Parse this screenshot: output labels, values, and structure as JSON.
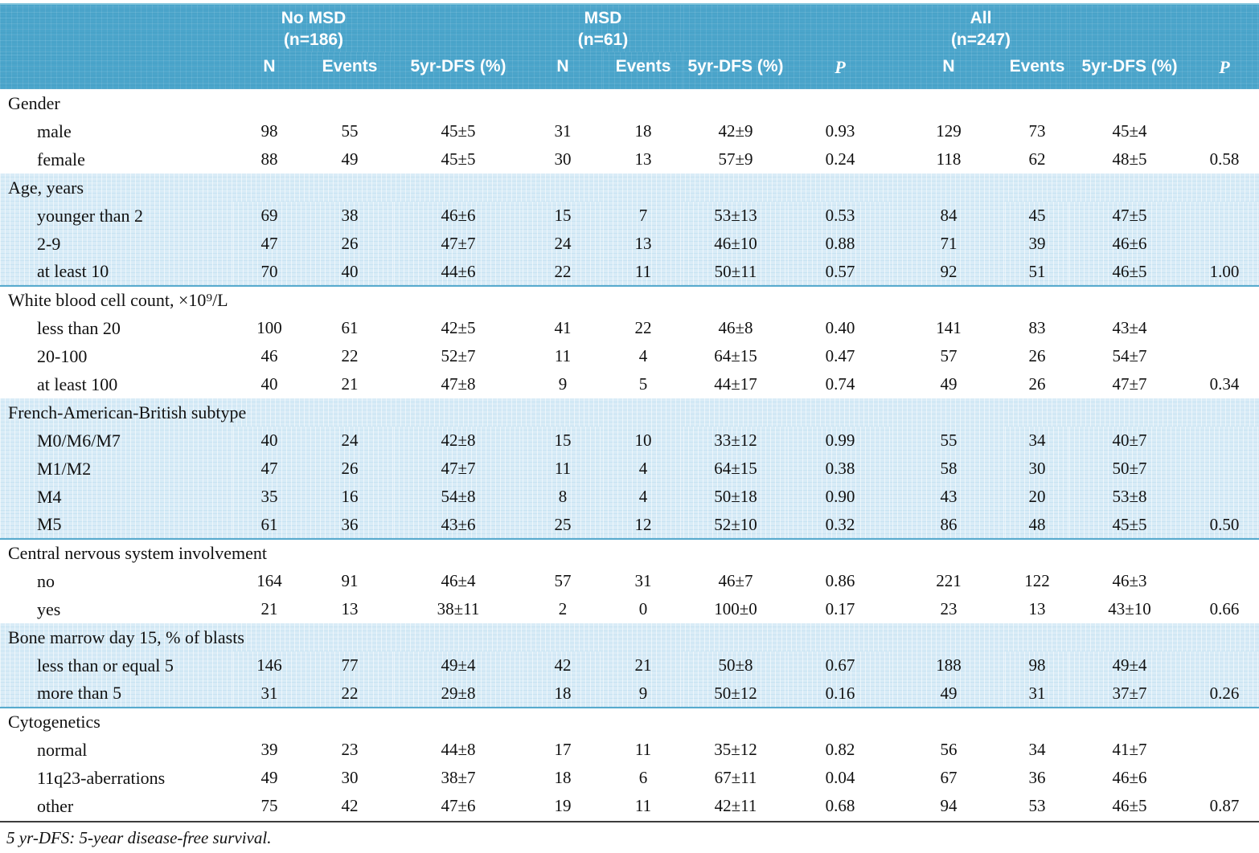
{
  "colors": {
    "header_bg": "#4ba5cb",
    "header_text": "#ffffff",
    "band_bg": "#d9ecf7",
    "band_rule": "#57aacd",
    "body_text": "#111111"
  },
  "table": {
    "groups": [
      {
        "name": "No MSD",
        "n": "(n=186)",
        "columns": [
          "N",
          "Events",
          "5yr-DFS (%)"
        ]
      },
      {
        "name": "MSD",
        "n": "(n=61)",
        "columns": [
          "N",
          "Events",
          "5yr-DFS (%)",
          "P"
        ]
      },
      {
        "name": "All",
        "n": "(n=247)",
        "columns": [
          "N",
          "Events",
          "5yr-DFS (%)",
          "P"
        ]
      }
    ],
    "sections": [
      {
        "title": "Gender",
        "shaded": false,
        "rows": [
          {
            "label": "male",
            "values": [
              "98",
              "55",
              "45±5",
              "31",
              "18",
              "42±9",
              "0.93",
              "129",
              "73",
              "45±4",
              ""
            ]
          },
          {
            "label": "female",
            "values": [
              "88",
              "49",
              "45±5",
              "30",
              "13",
              "57±9",
              "0.24",
              "118",
              "62",
              "48±5",
              "0.58"
            ]
          }
        ]
      },
      {
        "title": "Age, years",
        "shaded": true,
        "rows": [
          {
            "label": "younger than 2",
            "values": [
              "69",
              "38",
              "46±6",
              "15",
              "7",
              "53±13",
              "0.53",
              "84",
              "45",
              "47±5",
              ""
            ]
          },
          {
            "label": "2-9",
            "values": [
              "47",
              "26",
              "47±7",
              "24",
              "13",
              "46±10",
              "0.88",
              "71",
              "39",
              "46±6",
              ""
            ]
          },
          {
            "label": "at least 10",
            "values": [
              "70",
              "40",
              "44±6",
              "22",
              "11",
              "50±11",
              "0.57",
              "92",
              "51",
              "46±5",
              "1.00"
            ]
          }
        ]
      },
      {
        "title": "White blood cell count, ×10⁹/L",
        "shaded": false,
        "rows": [
          {
            "label": "less than 20",
            "values": [
              "100",
              "61",
              "42±5",
              "41",
              "22",
              "46±8",
              "0.40",
              "141",
              "83",
              "43±4",
              ""
            ]
          },
          {
            "label": "20-100",
            "values": [
              "46",
              "22",
              "52±7",
              "11",
              "4",
              "64±15",
              "0.47",
              "57",
              "26",
              "54±7",
              ""
            ]
          },
          {
            "label": "at least 100",
            "values": [
              "40",
              "21",
              "47±8",
              "9",
              "5",
              "44±17",
              "0.74",
              "49",
              "26",
              "47±7",
              "0.34"
            ]
          }
        ]
      },
      {
        "title": "French-American-British subtype",
        "shaded": true,
        "rows": [
          {
            "label": "M0/M6/M7",
            "values": [
              "40",
              "24",
              "42±8",
              "15",
              "10",
              "33±12",
              "0.99",
              "55",
              "34",
              "40±7",
              ""
            ]
          },
          {
            "label": "M1/M2",
            "values": [
              "47",
              "26",
              "47±7",
              "11",
              "4",
              "64±15",
              "0.38",
              "58",
              "30",
              "50±7",
              ""
            ]
          },
          {
            "label": "M4",
            "values": [
              "35",
              "16",
              "54±8",
              "8",
              "4",
              "50±18",
              "0.90",
              "43",
              "20",
              "53±8",
              ""
            ]
          },
          {
            "label": "M5",
            "values": [
              "61",
              "36",
              "43±6",
              "25",
              "12",
              "52±10",
              "0.32",
              "86",
              "48",
              "45±5",
              "0.50"
            ]
          }
        ]
      },
      {
        "title": "Central nervous system involvement",
        "shaded": false,
        "rows": [
          {
            "label": "no",
            "values": [
              "164",
              "91",
              "46±4",
              "57",
              "31",
              "46±7",
              "0.86",
              "221",
              "122",
              "46±3",
              ""
            ]
          },
          {
            "label": "yes",
            "values": [
              "21",
              "13",
              "38±11",
              "2",
              "0",
              "100±0",
              "0.17",
              "23",
              "13",
              "43±10",
              "0.66"
            ]
          }
        ]
      },
      {
        "title": "Bone marrow day 15, % of blasts",
        "shaded": true,
        "rows": [
          {
            "label": "less than or equal 5",
            "values": [
              "146",
              "77",
              "49±4",
              "42",
              "21",
              "50±8",
              "0.67",
              "188",
              "98",
              "49±4",
              ""
            ]
          },
          {
            "label": "more than 5",
            "values": [
              "31",
              "22",
              "29±8",
              "18",
              "9",
              "50±12",
              "0.16",
              "49",
              "31",
              "37±7",
              "0.26"
            ]
          }
        ]
      },
      {
        "title": "Cytogenetics",
        "shaded": false,
        "rows": [
          {
            "label": "normal",
            "values": [
              "39",
              "23",
              "44±8",
              "17",
              "11",
              "35±12",
              "0.82",
              "56",
              "34",
              "41±7",
              ""
            ]
          },
          {
            "label": "11q23-aberrations",
            "values": [
              "49",
              "30",
              "38±7",
              "18",
              "6",
              "67±11",
              "0.04",
              "67",
              "36",
              "46±6",
              ""
            ]
          },
          {
            "label": "other",
            "values": [
              "75",
              "42",
              "47±6",
              "19",
              "11",
              "42±11",
              "0.68",
              "94",
              "53",
              "46±5",
              "0.87"
            ]
          }
        ]
      }
    ],
    "footnote": "5 yr-DFS: 5-year disease-free survival."
  }
}
